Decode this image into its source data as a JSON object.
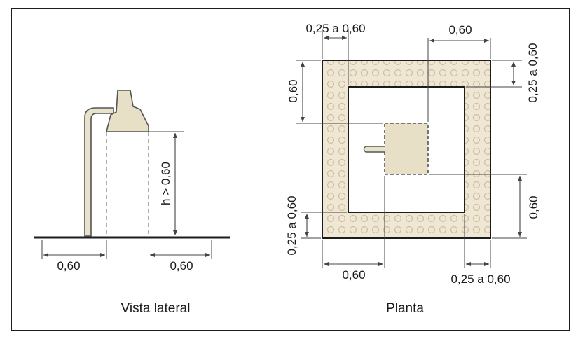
{
  "colors": {
    "frame": "#1c1c1c",
    "fixture_fill": "#e7dfc6",
    "pipe_fill": "#e9e2ca",
    "hatch_fill": "#efe6d3",
    "hatch_circle": "#cbbf9f",
    "dimension": "#444444"
  },
  "side_view": {
    "caption": "Vista lateral",
    "height_label": "h > 0,60",
    "left_width": "0,60",
    "right_width": "0,60"
  },
  "plan_view": {
    "caption": "Planta",
    "top_margin": "0,25 a 0,60",
    "top_width": "0,60",
    "right_margin_top": "0,25 a 0,60",
    "left_height": "0,60",
    "left_margin_bottom": "0,25 a 0,60",
    "right_height": "0,60",
    "bottom_width": "0,60",
    "bottom_margin": "0,25 a 0,60"
  }
}
